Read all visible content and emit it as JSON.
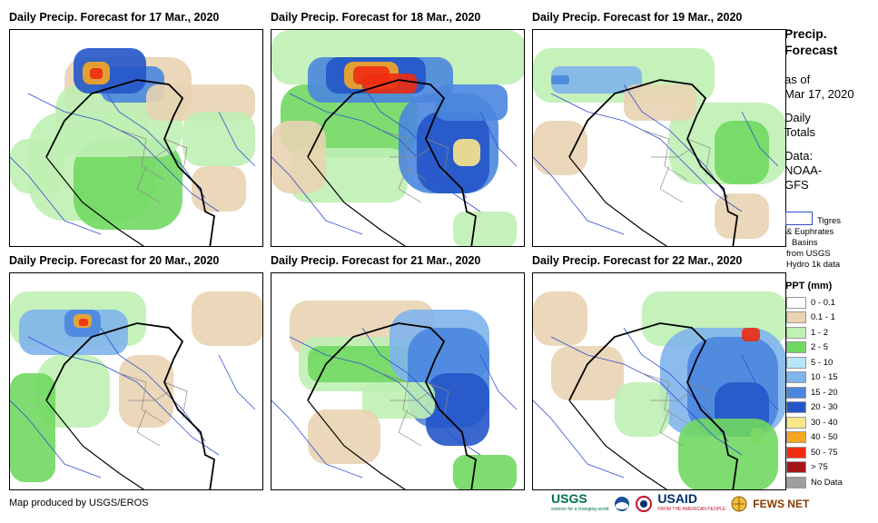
{
  "panels": [
    {
      "title": "Daily Precip. Forecast for 17 Mar., 2020"
    },
    {
      "title": "Daily Precip. Forecast for 18 Mar., 2020"
    },
    {
      "title": "Daily Precip. Forecast for 19 Mar., 2020"
    },
    {
      "title": "Daily Precip. Forecast for 20 Mar., 2020"
    },
    {
      "title": "Daily Precip. Forecast for 21 Mar., 2020"
    },
    {
      "title": "Daily Precip. Forecast for 22 Mar., 2020"
    }
  ],
  "sidebar": {
    "heading_line1": "Precip.",
    "heading_line2": "Forecast",
    "asof_line1": "as of",
    "asof_line2": "Mar 17, 2020",
    "daily_line1": "Daily",
    "daily_line2": "Totals",
    "data_line1": "Data:",
    "data_line2": "NOAA-",
    "data_line3": "GFS",
    "basin_line1": "Tigres",
    "basin_line2": "& Euphrates",
    "basin_line3": "Basins",
    "basin_line4": "from USGS",
    "basin_line5": "Hydro 1k data"
  },
  "legend": {
    "title": "PPT (mm)",
    "items": [
      {
        "label": "0 - 0.1",
        "color": "#ffffff"
      },
      {
        "label": "0.1 - 1",
        "color": "#e9d3b1"
      },
      {
        "label": "1 - 2",
        "color": "#bff0b4"
      },
      {
        "label": "2 - 5",
        "color": "#70d860"
      },
      {
        "label": "5 - 10",
        "color": "#b8e6f8"
      },
      {
        "label": "10 - 15",
        "color": "#7fb4ec"
      },
      {
        "label": "15 - 20",
        "color": "#4a86de"
      },
      {
        "label": "20 - 30",
        "color": "#2456c8"
      },
      {
        "label": "30 - 40",
        "color": "#fbe68a"
      },
      {
        "label": "40 - 50",
        "color": "#f5a623"
      },
      {
        "label": "50 - 75",
        "color": "#ee2c10"
      },
      {
        "label": "> 75",
        "color": "#a4161a"
      },
      {
        "label": "No Data",
        "color": "#9e9e9e"
      }
    ]
  },
  "footer": {
    "credit": "Map produced by USGS/EROS"
  },
  "logos": {
    "usgs": "USGS",
    "usgs_tagline": "science for a changing world",
    "usaid": "USAID",
    "usaid_tagline": "FROM THE AMERICAN PEOPLE",
    "fewsnet": "FEWS NET"
  }
}
